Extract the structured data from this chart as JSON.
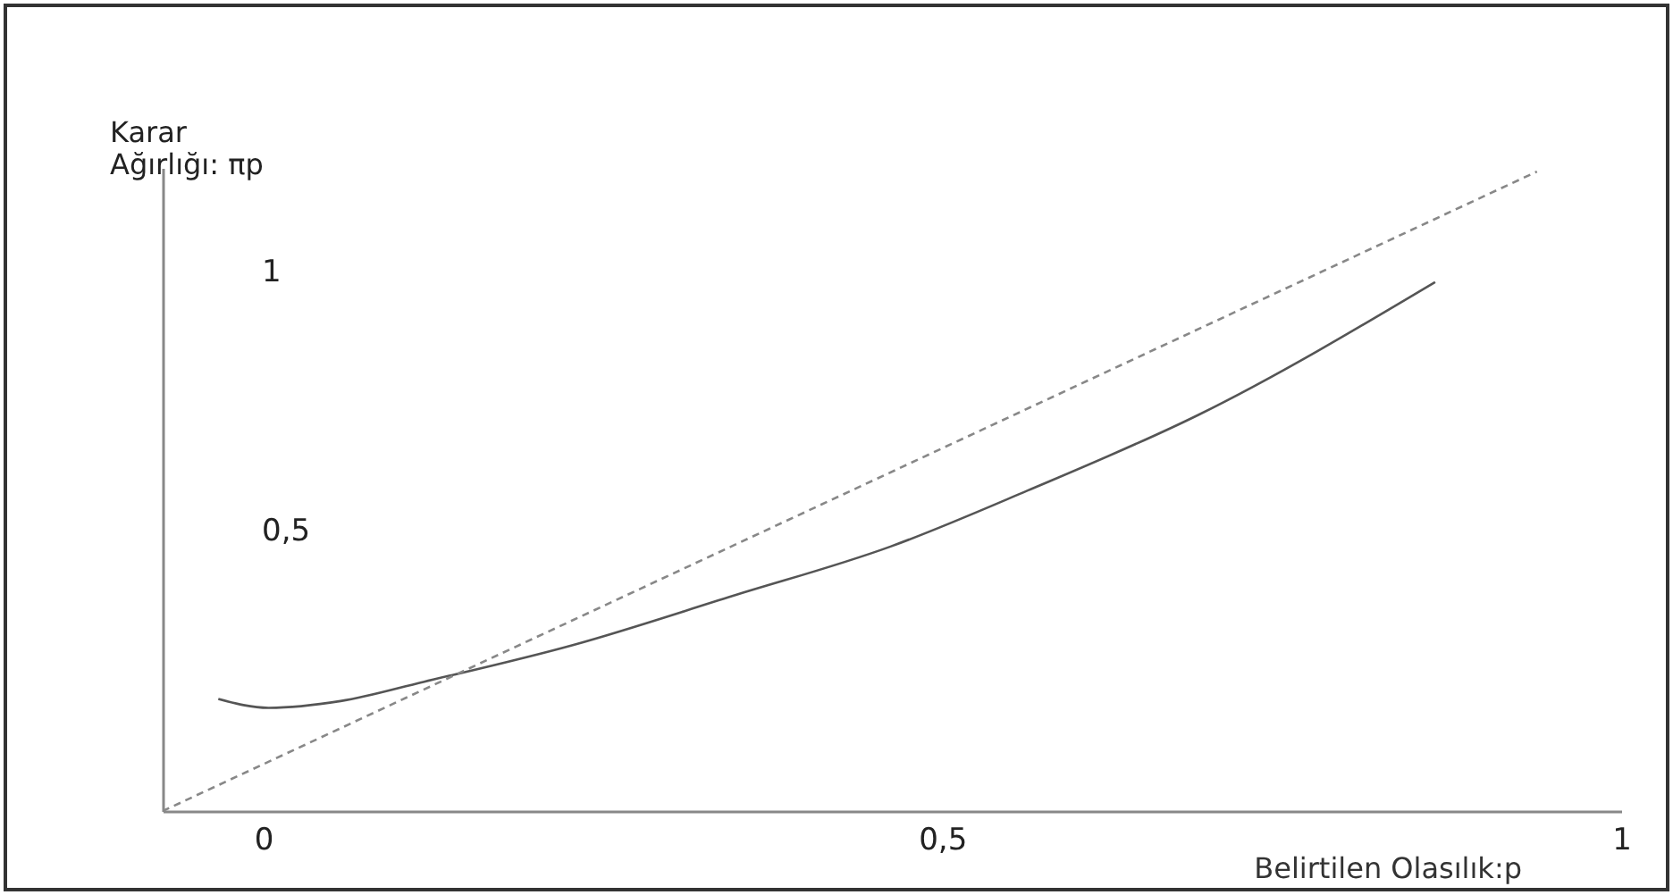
{
  "chart_data": {
    "type": "line",
    "xlabel": "Belirtilen Olasılık:p",
    "ylabel": "Karar Ağırlığı: πp",
    "xlim": [
      -0.074,
      1.0
    ],
    "ylim": [
      -0.04,
      1.2
    ],
    "xticks": [
      0,
      {
        "value": 0.5,
        "label": "0,5"
      },
      1
    ],
    "yticks": [
      {
        "value": 0.5,
        "label": "0,5"
      },
      1
    ],
    "grid": false,
    "series": [
      {
        "color": "#555555",
        "line_style": "solid",
        "x": [
          -0.033,
          0.004,
          0.057,
          0.118,
          0.228,
          0.346,
          0.462,
          0.563,
          0.688,
          0.863
        ],
        "values": [
          0.176,
          0.159,
          0.172,
          0.209,
          0.28,
          0.375,
          0.47,
          0.578,
          0.723,
          0.98
        ]
      },
      {
        "color": "#888888",
        "line_style": "dashed",
        "x": [
          -0.074,
          0.938
        ],
        "values": [
          -0.04,
          1.193
        ]
      }
    ]
  }
}
